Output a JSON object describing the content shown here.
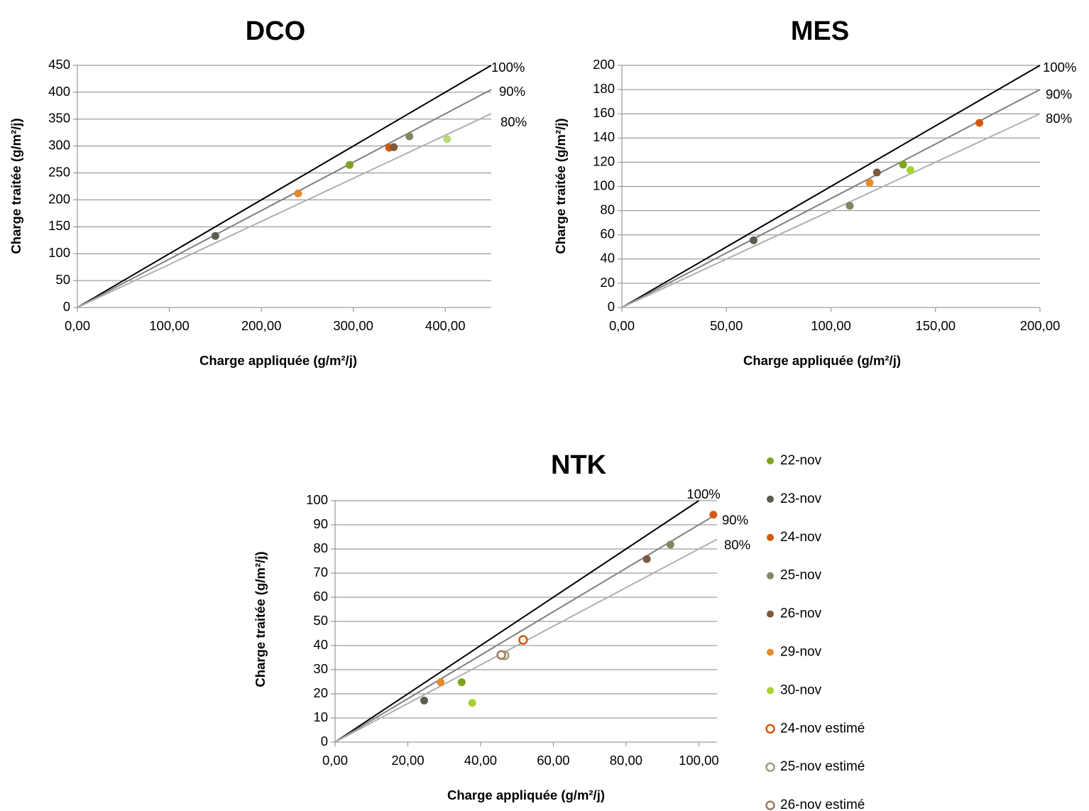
{
  "chart_data": [
    {
      "type": "scatter",
      "title": "DCO",
      "xlabel": "Charge appliquée (g/m²/j)",
      "ylabel": "Charge traitée (g/m²/j)",
      "xlim": [
        0,
        450
      ],
      "ylim": [
        0,
        450
      ],
      "xticks": [
        0,
        100,
        200,
        300,
        400
      ],
      "xtick_labels": [
        "0,00",
        "100,00",
        "200,00",
        "300,00",
        "400,00"
      ],
      "yticks": [
        0,
        50,
        100,
        150,
        200,
        250,
        300,
        350,
        400,
        450
      ],
      "ytick_labels": [
        "0",
        "50",
        "100",
        "150",
        "200",
        "250",
        "300",
        "350",
        "400",
        "450"
      ],
      "grid": "horizontal",
      "reference_lines": [
        {
          "label": "100%",
          "slope": 1.0,
          "color": "#000000"
        },
        {
          "label": "90%",
          "slope": 0.9,
          "color": "#7f7f7f"
        },
        {
          "label": "80%",
          "slope": 0.8,
          "color": "#b0b0b0"
        }
      ],
      "points": [
        {
          "series": "22-nov",
          "x": 296,
          "y": 265
        },
        {
          "series": "23-nov",
          "x": 150,
          "y": 133
        },
        {
          "series": "24-nov",
          "x": 339,
          "y": 297
        },
        {
          "series": "25-nov",
          "x": 361,
          "y": 318
        },
        {
          "series": "26-nov",
          "x": 344,
          "y": 298
        },
        {
          "series": "29-nov",
          "x": 240,
          "y": 212
        },
        {
          "series": "30-nov",
          "x": 402,
          "y": 313
        }
      ]
    },
    {
      "type": "scatter",
      "title": "MES",
      "xlabel": "Charge appliquée (g/m²/j)",
      "ylabel": "Charge traitée (g/m²/j)",
      "xlim": [
        0,
        200
      ],
      "ylim": [
        0,
        200
      ],
      "xticks": [
        0,
        50,
        100,
        150,
        200
      ],
      "xtick_labels": [
        "0,00",
        "50,00",
        "100,00",
        "150,00",
        "200,00"
      ],
      "yticks": [
        0,
        20,
        40,
        60,
        80,
        100,
        120,
        140,
        160,
        180,
        200
      ],
      "ytick_labels": [
        "0",
        "20",
        "40",
        "60",
        "80",
        "100",
        "120",
        "140",
        "160",
        "180",
        "200"
      ],
      "grid": "horizontal",
      "reference_lines": [
        {
          "label": "100%",
          "slope": 1.0,
          "color": "#000000"
        },
        {
          "label": "90%",
          "slope": 0.9,
          "color": "#7f7f7f"
        },
        {
          "label": "80%",
          "slope": 0.8,
          "color": "#b0b0b0"
        }
      ],
      "points": [
        {
          "series": "22-nov",
          "x": 134.5,
          "y": 118
        },
        {
          "series": "23-nov",
          "x": 63,
          "y": 55.5
        },
        {
          "series": "24-nov",
          "x": 171,
          "y": 152.5
        },
        {
          "series": "25-nov",
          "x": 109,
          "y": 84
        },
        {
          "series": "26-nov",
          "x": 122,
          "y": 111.5
        },
        {
          "series": "29-nov",
          "x": 118.5,
          "y": 103
        },
        {
          "series": "30-nov",
          "x": 138,
          "y": 113.5
        }
      ]
    },
    {
      "type": "scatter",
      "title": "NTK",
      "xlabel": "Charge appliquée (g/m²/j)",
      "ylabel": "Charge traitée (g/m²/j)",
      "xlim": [
        0,
        105
      ],
      "ylim": [
        0,
        100
      ],
      "xticks": [
        0,
        20,
        40,
        60,
        80,
        100
      ],
      "xtick_labels": [
        "0,00",
        "20,00",
        "40,00",
        "60,00",
        "80,00",
        "100,00"
      ],
      "yticks": [
        0,
        10,
        20,
        30,
        40,
        50,
        60,
        70,
        80,
        90,
        100
      ],
      "ytick_labels": [
        "0",
        "10",
        "20",
        "30",
        "40",
        "50",
        "60",
        "70",
        "80",
        "90",
        "100"
      ],
      "grid": "horizontal",
      "reference_lines": [
        {
          "label": "100%",
          "slope": 1.0,
          "color": "#000000"
        },
        {
          "label": "90%",
          "slope": 0.9,
          "color": "#7f7f7f"
        },
        {
          "label": "80%",
          "slope": 0.8,
          "color": "#b0b0b0"
        }
      ],
      "points": [
        {
          "series": "22-nov",
          "x": 34.8,
          "y": 24.8
        },
        {
          "series": "23-nov",
          "x": 24.5,
          "y": 17.2
        },
        {
          "series": "24-nov",
          "x": 104,
          "y": 94.2
        },
        {
          "series": "25-nov",
          "x": 92.2,
          "y": 81.8
        },
        {
          "series": "26-nov",
          "x": 85.7,
          "y": 75.8
        },
        {
          "series": "29-nov",
          "x": 29,
          "y": 24.8
        },
        {
          "series": "30-nov",
          "x": 37.7,
          "y": 16.2
        },
        {
          "series": "24-nov estimé",
          "x": 51.7,
          "y": 42.3
        },
        {
          "series": "25-nov estimé",
          "x": 46.6,
          "y": 35.9
        },
        {
          "series": "26-nov estimé",
          "x": 45.7,
          "y": 36.1
        }
      ]
    }
  ],
  "legend": {
    "placement": "right of NTK chart",
    "items": [
      {
        "label": "22-nov",
        "color": "#7ea41e",
        "filled": true
      },
      {
        "label": "23-nov",
        "color": "#5e5a52",
        "filled": true
      },
      {
        "label": "24-nov",
        "color": "#d25a0e",
        "filled": true
      },
      {
        "label": "25-nov",
        "color": "#7e8a62",
        "filled": true
      },
      {
        "label": "26-nov",
        "color": "#7c5a3e",
        "filled": true
      },
      {
        "label": "29-nov",
        "color": "#e8892a",
        "filled": true
      },
      {
        "label": "30-nov",
        "color": "#a8d230",
        "filled": true
      },
      {
        "label": "24-nov estimé",
        "color": "#d25a0e",
        "filled": false
      },
      {
        "label": "25-nov estimé",
        "color": "#9ca07a",
        "filled": false
      },
      {
        "label": "26-nov estimé",
        "color": "#9c7a5c",
        "filled": false
      }
    ]
  },
  "series_colors": {
    "22-nov": "#7ea41e",
    "23-nov": "#5e5a52",
    "24-nov": "#d25a0e",
    "25-nov": "#7e8a62",
    "26-nov": "#7c5a3e",
    "29-nov": "#e8892a",
    "30-nov": "#a8d230",
    "24-nov estimé": "#d25a0e",
    "25-nov estimé": "#9ca07a",
    "26-nov estimé": "#9c7a5c"
  },
  "dco_30nov_color": "#b9db7c"
}
